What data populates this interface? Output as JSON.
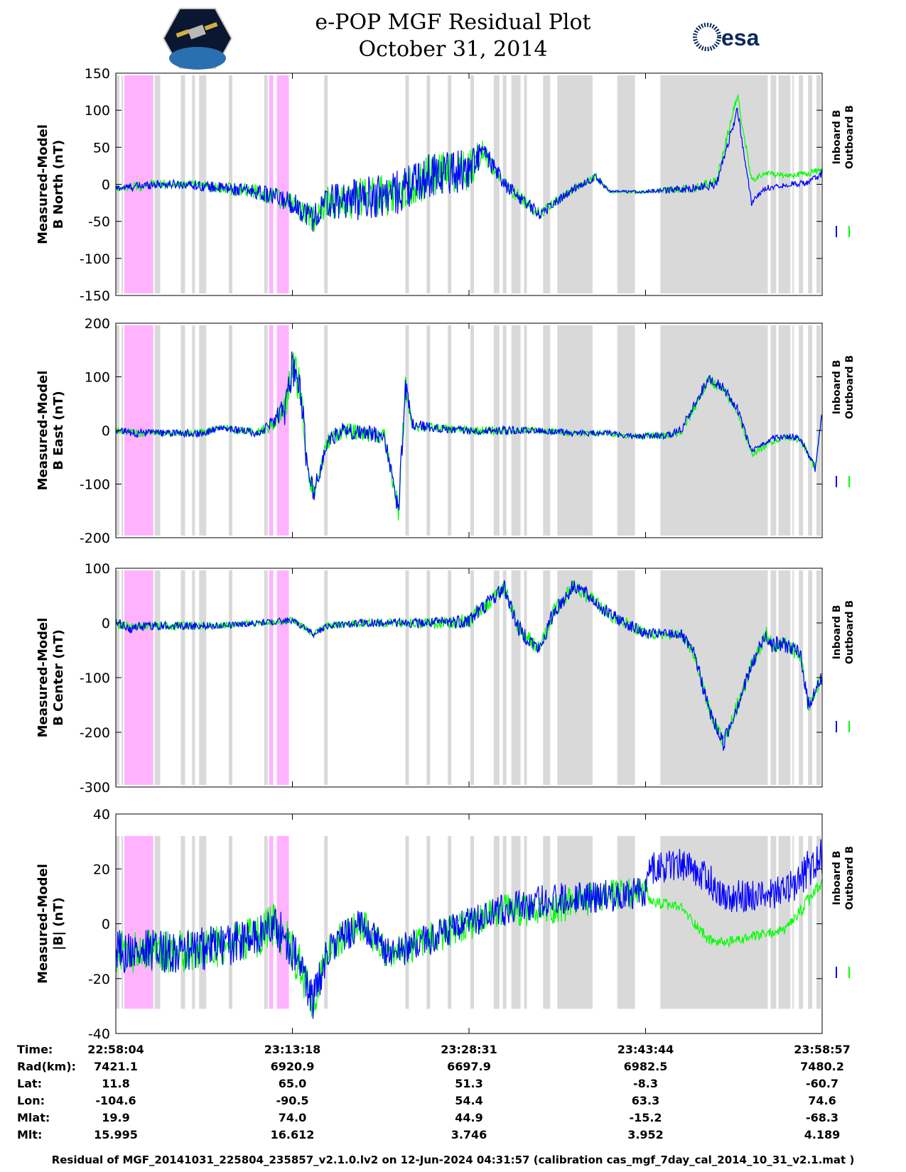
{
  "header": {
    "title_line1": "e-POP MGF Residual Plot",
    "title_line2": "October 31, 2014",
    "logo_left": "cassiope-mission-logo",
    "logo_right_text": "esa"
  },
  "colors": {
    "inboard": "#0000ff",
    "outboard": "#00ff00",
    "gray_band": "#d9d9d9",
    "pink_band": "#ffb3ff"
  },
  "chart_data": [
    {
      "type": "line",
      "ylabel_line1": "Measured-Model",
      "ylabel_line2": "B North (nT)",
      "ylim": [
        -150,
        150
      ],
      "yticks": [
        -150,
        -100,
        -50,
        0,
        50,
        100,
        150
      ],
      "legend": [
        "Inboard B",
        "Outboard B"
      ],
      "series": [
        {
          "name": "Inboard B",
          "x": [
            0,
            3,
            5,
            10,
            15,
            20,
            25,
            28,
            30,
            32,
            35,
            40,
            45,
            50,
            52,
            55,
            60,
            65,
            68,
            70,
            72,
            75,
            78,
            82,
            85,
            88,
            90,
            92,
            95,
            98,
            100
          ],
          "values": [
            -5,
            -3,
            0,
            0,
            -5,
            -10,
            -25,
            -45,
            -25,
            -20,
            -20,
            -10,
            15,
            20,
            45,
            0,
            -40,
            -5,
            10,
            -10,
            -10,
            -10,
            -8,
            -5,
            0,
            100,
            -25,
            -5,
            0,
            2,
            15
          ],
          "noise": [
            4,
            6,
            6,
            6,
            8,
            10,
            15,
            20,
            25,
            25,
            30,
            30,
            30,
            30,
            15,
            10,
            8,
            5,
            5,
            2,
            2,
            2,
            4,
            6,
            6,
            6,
            4,
            4,
            4,
            4,
            6
          ]
        },
        {
          "name": "Outboard B",
          "x": [
            0,
            3,
            5,
            10,
            15,
            20,
            25,
            28,
            30,
            32,
            35,
            40,
            45,
            50,
            52,
            55,
            60,
            65,
            68,
            70,
            72,
            75,
            78,
            82,
            85,
            88,
            90,
            92,
            95,
            98,
            100
          ],
          "values": [
            -5,
            -3,
            0,
            0,
            -5,
            -10,
            -25,
            -45,
            -25,
            -20,
            -20,
            -10,
            15,
            20,
            45,
            0,
            -40,
            -5,
            10,
            -10,
            -10,
            -10,
            -8,
            -5,
            5,
            120,
            5,
            15,
            12,
            15,
            20
          ],
          "noise": [
            4,
            6,
            6,
            6,
            8,
            10,
            15,
            20,
            25,
            25,
            30,
            30,
            30,
            30,
            15,
            10,
            8,
            5,
            5,
            2,
            2,
            2,
            4,
            6,
            6,
            6,
            4,
            4,
            4,
            4,
            6
          ]
        }
      ]
    },
    {
      "type": "line",
      "ylabel_line1": "Measured-Model",
      "ylabel_line2": "B East (nT)",
      "ylim": [
        -200,
        200
      ],
      "yticks": [
        -200,
        -100,
        0,
        100,
        200
      ],
      "legend": [
        "Inboard B",
        "Outboard B"
      ],
      "series": [
        {
          "name": "Inboard B",
          "x": [
            0,
            3,
            8,
            12,
            15,
            20,
            22,
            24,
            25,
            26,
            27,
            28,
            30,
            32,
            38,
            40,
            41,
            42,
            45,
            50,
            55,
            60,
            65,
            70,
            72,
            75,
            78,
            80,
            82,
            84,
            86,
            88,
            90,
            93,
            95,
            97,
            99,
            100
          ],
          "values": [
            0,
            -5,
            -5,
            -5,
            5,
            -5,
            10,
            40,
            120,
            90,
            -50,
            -120,
            -20,
            0,
            -10,
            -150,
            80,
            10,
            5,
            0,
            0,
            0,
            -5,
            -5,
            -10,
            -10,
            -10,
            0,
            50,
            100,
            80,
            40,
            -40,
            -15,
            -10,
            -15,
            -70,
            30
          ],
          "noise": [
            6,
            8,
            6,
            8,
            6,
            8,
            15,
            30,
            40,
            40,
            30,
            20,
            15,
            15,
            15,
            20,
            25,
            12,
            8,
            8,
            8,
            6,
            6,
            5,
            5,
            6,
            6,
            8,
            10,
            10,
            10,
            8,
            6,
            6,
            6,
            6,
            8,
            8
          ]
        },
        {
          "name": "Outboard B",
          "x": [
            0,
            3,
            8,
            12,
            15,
            20,
            22,
            24,
            25,
            26,
            27,
            28,
            30,
            32,
            38,
            40,
            41,
            42,
            45,
            50,
            55,
            60,
            65,
            70,
            72,
            75,
            78,
            80,
            82,
            84,
            86,
            88,
            90,
            93,
            95,
            97,
            99,
            100
          ],
          "values": [
            0,
            -5,
            -5,
            -5,
            5,
            -5,
            10,
            40,
            120,
            90,
            -50,
            -120,
            -20,
            0,
            -10,
            -150,
            80,
            10,
            5,
            0,
            0,
            0,
            -5,
            -5,
            -10,
            -10,
            -10,
            -5,
            45,
            95,
            75,
            35,
            -45,
            -20,
            -12,
            -18,
            -70,
            30
          ],
          "noise": [
            6,
            8,
            6,
            8,
            6,
            8,
            15,
            30,
            40,
            40,
            30,
            20,
            15,
            15,
            15,
            20,
            25,
            12,
            8,
            8,
            8,
            6,
            6,
            5,
            5,
            6,
            6,
            8,
            10,
            10,
            10,
            8,
            6,
            6,
            6,
            6,
            8,
            8
          ]
        }
      ]
    },
    {
      "type": "line",
      "ylabel_line1": "Measured-Model",
      "ylabel_line2": "B Center (nT)",
      "ylim": [
        -300,
        100
      ],
      "yticks": [
        -300,
        -200,
        -100,
        0,
        100
      ],
      "legend": [
        "Inboard B",
        "Outboard B"
      ],
      "series": [
        {
          "name": "Inboard B",
          "x": [
            0,
            2,
            5,
            10,
            15,
            20,
            25,
            28,
            30,
            35,
            40,
            45,
            50,
            55,
            57,
            60,
            62,
            65,
            70,
            75,
            80,
            82,
            84,
            86,
            88,
            90,
            92,
            93,
            95,
            97,
            98,
            100
          ],
          "values": [
            0,
            -10,
            -5,
            -5,
            -5,
            0,
            5,
            -20,
            -5,
            0,
            0,
            0,
            5,
            65,
            -10,
            -50,
            20,
            70,
            15,
            -20,
            -20,
            -60,
            -160,
            -220,
            -150,
            -80,
            -20,
            -40,
            -40,
            -60,
            -150,
            -100
          ],
          "noise": [
            8,
            10,
            8,
            8,
            6,
            6,
            6,
            6,
            6,
            8,
            8,
            10,
            15,
            15,
            15,
            15,
            15,
            15,
            12,
            10,
            10,
            12,
            15,
            15,
            15,
            15,
            15,
            15,
            15,
            15,
            15,
            15
          ]
        },
        {
          "name": "Outboard B",
          "x": [
            0,
            2,
            5,
            10,
            15,
            20,
            25,
            28,
            30,
            35,
            40,
            45,
            50,
            55,
            57,
            60,
            62,
            65,
            70,
            75,
            80,
            82,
            84,
            86,
            88,
            90,
            92,
            93,
            95,
            97,
            98,
            100
          ],
          "values": [
            0,
            -10,
            -5,
            -5,
            -5,
            0,
            5,
            -20,
            -5,
            0,
            0,
            0,
            5,
            65,
            -10,
            -50,
            20,
            70,
            15,
            -20,
            -20,
            -60,
            -160,
            -220,
            -150,
            -80,
            -20,
            -40,
            -40,
            -60,
            -150,
            -100
          ],
          "noise": [
            8,
            10,
            8,
            8,
            6,
            6,
            6,
            6,
            6,
            8,
            8,
            10,
            15,
            15,
            15,
            15,
            15,
            15,
            12,
            10,
            10,
            12,
            15,
            15,
            15,
            15,
            15,
            15,
            15,
            15,
            15,
            15
          ]
        }
      ]
    },
    {
      "type": "line",
      "ylabel_line1": "Measured-Model",
      "ylabel_line2": "|B| (nT)",
      "ylim": [
        -40,
        40
      ],
      "yticks": [
        -40,
        -20,
        0,
        20,
        40
      ],
      "legend": [
        "Inboard B",
        "Outboard B"
      ],
      "series": [
        {
          "name": "Inboard B",
          "x": [
            0,
            5,
            10,
            15,
            20,
            22,
            24,
            26,
            28,
            30,
            32,
            35,
            38,
            40,
            45,
            50,
            55,
            60,
            65,
            70,
            75,
            75.5,
            80,
            82,
            84,
            86,
            88,
            90,
            95,
            100
          ],
          "values": [
            -10,
            -10,
            -10,
            -8,
            -5,
            0,
            -5,
            -15,
            -28,
            -10,
            -5,
            0,
            -10,
            -10,
            -5,
            0,
            5,
            8,
            10,
            10,
            12,
            20,
            22,
            20,
            16,
            10,
            10,
            10,
            12,
            25
          ],
          "noise": [
            8,
            8,
            8,
            8,
            8,
            8,
            8,
            8,
            8,
            6,
            6,
            6,
            6,
            6,
            6,
            6,
            6,
            6,
            6,
            6,
            6,
            6,
            6,
            6,
            6,
            6,
            6,
            6,
            6,
            8
          ]
        },
        {
          "name": "Outboard B",
          "x": [
            0,
            5,
            10,
            15,
            20,
            22,
            24,
            26,
            28,
            30,
            32,
            35,
            38,
            40,
            45,
            50,
            55,
            60,
            65,
            70,
            75,
            75.5,
            80,
            82,
            84,
            86,
            88,
            90,
            95,
            100
          ],
          "values": [
            -10,
            -10,
            -10,
            -8,
            -5,
            0,
            -5,
            -15,
            -28,
            -10,
            -5,
            0,
            -10,
            -10,
            -5,
            0,
            5,
            4,
            8,
            10,
            12,
            8,
            6,
            0,
            -6,
            -7,
            -6,
            -5,
            -2,
            15
          ],
          "noise": [
            8,
            8,
            8,
            8,
            8,
            8,
            8,
            8,
            8,
            6,
            6,
            6,
            6,
            6,
            6,
            6,
            6,
            6,
            6,
            6,
            6,
            2,
            2,
            2,
            2,
            2,
            2,
            2,
            2,
            3
          ]
        }
      ]
    }
  ],
  "bands": {
    "gray": [
      [
        0,
        0.5
      ],
      [
        0.8,
        1.0
      ],
      [
        5.5,
        6.3
      ],
      [
        9.2,
        9.8
      ],
      [
        10.8,
        11.2
      ],
      [
        11.8,
        12.8
      ],
      [
        16,
        16.5
      ],
      [
        21,
        21.5
      ],
      [
        29.5,
        30
      ],
      [
        41,
        41.5
      ],
      [
        44,
        44.5
      ],
      [
        47,
        47.5
      ],
      [
        50.2,
        50.7
      ],
      [
        53.5,
        54.3
      ],
      [
        54.8,
        55.3
      ],
      [
        56,
        57.3
      ],
      [
        57.8,
        58.2
      ],
      [
        60.5,
        61.5
      ],
      [
        62.5,
        67.5
      ],
      [
        71,
        73.5
      ],
      [
        77,
        96
      ],
      [
        96.7,
        97.3
      ],
      [
        98,
        98.6
      ],
      [
        99.2,
        99.8
      ]
    ],
    "pink": [
      [
        1.2,
        5.3
      ],
      [
        21.7,
        22.3
      ],
      [
        22.8,
        24.5
      ]
    ],
    "gaps": [
      [
        77,
        77.1
      ],
      [
        92.3,
        92.7
      ],
      [
        93.5,
        93.8
      ],
      [
        95.5,
        95.8
      ]
    ]
  },
  "xaxis": {
    "tick_positions": [
      0,
      25,
      50,
      75,
      100
    ]
  },
  "table": {
    "row_labels": [
      "Time:",
      "Rad(km):",
      "Lat:",
      "Lon:",
      "Mlat:",
      "Mlt:"
    ],
    "columns": [
      [
        "22:58:04",
        "7421.1",
        "11.8",
        "-104.6",
        "19.9",
        "15.995"
      ],
      [
        "23:13:18",
        "6920.9",
        "65.0",
        "-90.5",
        "74.0",
        "16.612"
      ],
      [
        "23:28:31",
        "6697.9",
        "51.3",
        "54.4",
        "44.9",
        "3.746"
      ],
      [
        "23:43:44",
        "6982.5",
        "-8.3",
        "63.3",
        "-15.2",
        "3.952"
      ],
      [
        "23:58:57",
        "7480.2",
        "-60.7",
        "74.6",
        "-68.3",
        "4.189"
      ]
    ]
  },
  "footer": "Residual of MGF_20141031_225804_235857_v2.1.0.lv2 on 12-Jun-2024 04:31:57 (calibration cas_mgf_7day_cal_2014_10_31_v2.1.mat )"
}
